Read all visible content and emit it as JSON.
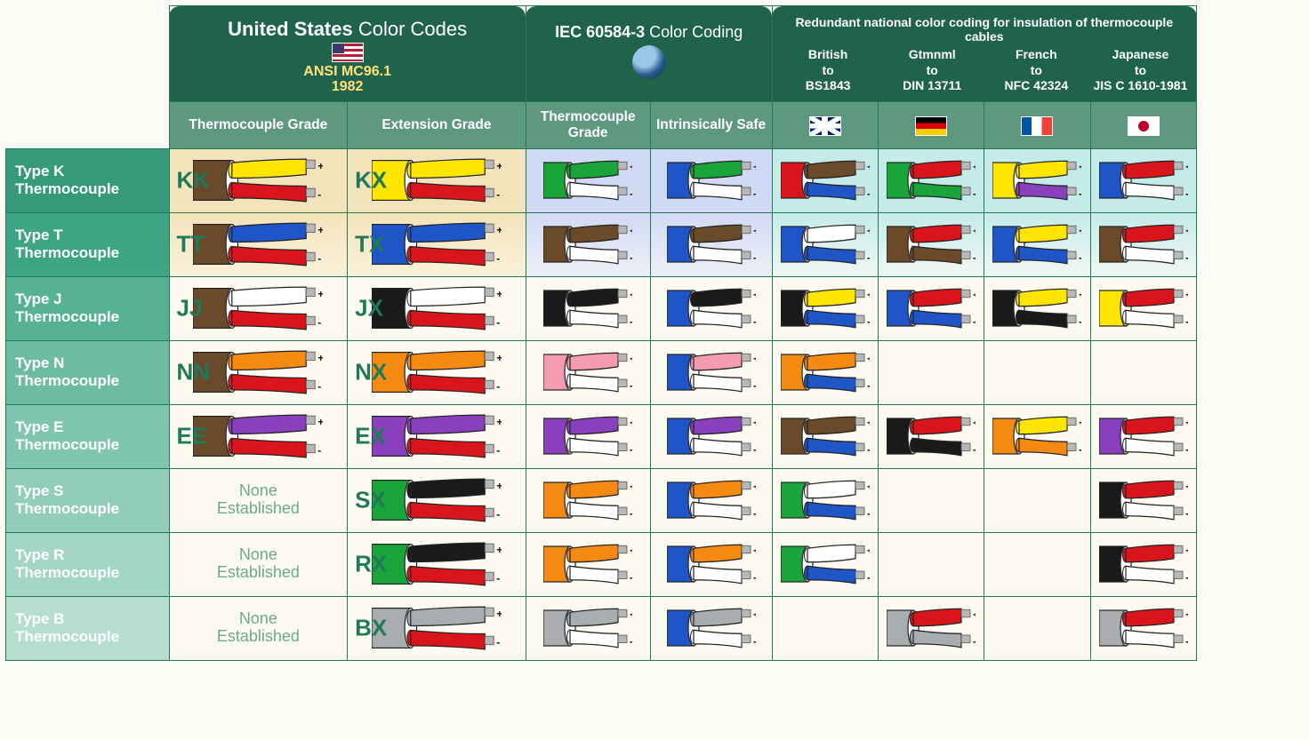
{
  "layout": {
    "row_col_width": 200,
    "us_col_width": 220,
    "iec_col_width": 150,
    "nat_col_width": 126,
    "cable_svg": {
      "w": 118,
      "h": 56
    }
  },
  "colors": {
    "header_bg": "#1f634a",
    "subheader_bg": "#5f9880",
    "border": "#1f7a5a",
    "tag_text": "#1f7a5a",
    "none_text": "#6aa88f",
    "row_shades": [
      "#349a7a",
      "#3ea584",
      "#57b294",
      "#6dbca2",
      "#80c5af",
      "#92cdba",
      "#a4d6c5",
      "#b5decf"
    ],
    "tint_tan": "#f3e3bb",
    "tint_blue": "#d1daf4",
    "tint_cyan": "#c5ebe9"
  },
  "palette": {
    "brown": "#6b4a2a",
    "yellow": "#ffe500",
    "red": "#d9141b",
    "blue": "#1f55c7",
    "white": "#ffffff",
    "green": "#1aa53b",
    "black": "#1a1a1a",
    "orange": "#f58a12",
    "pink": "#f59bb0",
    "purple": "#8a3fbd",
    "grey": "#a9adb0",
    "darkblue": "#1a3fa5"
  },
  "headers": {
    "us": {
      "title_bold": "United States",
      "title_light": "Color Codes",
      "standard": "ANSI MC96.1",
      "year": "1982",
      "sub_tc": "Thermocouple Grade",
      "sub_ext": "Extension Grade"
    },
    "iec": {
      "title_bold": "IEC 60584-3",
      "title_light": "Color Coding",
      "sub_tc": "Thermocouple Grade",
      "sub_safe": "Intrinsically Safe"
    },
    "nat": {
      "title": "Redundant national color coding for insulation of thermocouple cables",
      "cols": [
        {
          "l1": "British",
          "l2": "to",
          "l3": "BS1843",
          "flag": "uk"
        },
        {
          "l1": "Gtmnml",
          "l2": "to",
          "l3": "DIN 13711",
          "flag": "de"
        },
        {
          "l1": "French",
          "l2": "to",
          "l3": "NFC 42324",
          "flag": "fr"
        },
        {
          "l1": "Japanese",
          "l2": "to",
          "l3": "JIS C 1610-1981",
          "flag": "jp"
        }
      ]
    }
  },
  "none_label": "None\nEstablished",
  "rows": [
    {
      "label": "Type K\nThermocouple",
      "us_tc": {
        "tag": "KK",
        "jacket": "brown",
        "pos": "yellow",
        "neg": "red"
      },
      "us_ext": {
        "tag": "KX",
        "jacket": "yellow",
        "pos": "yellow",
        "neg": "red"
      },
      "iec_tc": {
        "jacket": "green",
        "pos": "green",
        "neg": "white"
      },
      "iec_safe": {
        "jacket": "blue",
        "pos": "green",
        "neg": "white"
      },
      "nat": [
        {
          "jacket": "red",
          "pos": "brown",
          "neg": "blue"
        },
        {
          "jacket": "green",
          "pos": "red",
          "neg": "green"
        },
        {
          "jacket": "yellow",
          "pos": "yellow",
          "neg": "purple"
        },
        {
          "jacket": "blue",
          "pos": "red",
          "neg": "white"
        }
      ]
    },
    {
      "label": "Type T\nThermocouple",
      "us_tc": {
        "tag": "TT",
        "jacket": "brown",
        "pos": "blue",
        "neg": "red"
      },
      "us_ext": {
        "tag": "TX",
        "jacket": "blue",
        "pos": "blue",
        "neg": "red"
      },
      "iec_tc": {
        "jacket": "brown",
        "pos": "brown",
        "neg": "white"
      },
      "iec_safe": {
        "jacket": "blue",
        "pos": "brown",
        "neg": "white"
      },
      "nat": [
        {
          "jacket": "blue",
          "pos": "white",
          "neg": "blue"
        },
        {
          "jacket": "brown",
          "pos": "red",
          "neg": "brown"
        },
        {
          "jacket": "blue",
          "pos": "yellow",
          "neg": "blue"
        },
        {
          "jacket": "brown",
          "pos": "red",
          "neg": "white"
        }
      ]
    },
    {
      "label": "Type J\nThermocouple",
      "us_tc": {
        "tag": "JJ",
        "jacket": "brown",
        "pos": "white",
        "neg": "red"
      },
      "us_ext": {
        "tag": "JX",
        "jacket": "black",
        "pos": "white",
        "neg": "red"
      },
      "iec_tc": {
        "jacket": "black",
        "pos": "black",
        "neg": "white"
      },
      "iec_safe": {
        "jacket": "blue",
        "pos": "black",
        "neg": "white"
      },
      "nat": [
        {
          "jacket": "black",
          "pos": "yellow",
          "neg": "blue"
        },
        {
          "jacket": "blue",
          "pos": "red",
          "neg": "blue"
        },
        {
          "jacket": "black",
          "pos": "yellow",
          "neg": "black"
        },
        {
          "jacket": "yellow",
          "pos": "red",
          "neg": "white"
        }
      ]
    },
    {
      "label": "Type N\nThermocouple",
      "us_tc": {
        "tag": "NN",
        "jacket": "brown",
        "pos": "orange",
        "neg": "red"
      },
      "us_ext": {
        "tag": "NX",
        "jacket": "orange",
        "pos": "orange",
        "neg": "red"
      },
      "iec_tc": {
        "jacket": "pink",
        "pos": "pink",
        "neg": "white"
      },
      "iec_safe": {
        "jacket": "blue",
        "pos": "pink",
        "neg": "white"
      },
      "nat": [
        {
          "jacket": "orange",
          "pos": "orange",
          "neg": "blue"
        },
        null,
        null,
        null
      ]
    },
    {
      "label": "Type E\nThermocouple",
      "us_tc": {
        "tag": "EE",
        "jacket": "brown",
        "pos": "purple",
        "neg": "red"
      },
      "us_ext": {
        "tag": "EX",
        "jacket": "purple",
        "pos": "purple",
        "neg": "red"
      },
      "iec_tc": {
        "jacket": "purple",
        "pos": "purple",
        "neg": "white"
      },
      "iec_safe": {
        "jacket": "blue",
        "pos": "purple",
        "neg": "white"
      },
      "nat": [
        {
          "jacket": "brown",
          "pos": "brown",
          "neg": "blue"
        },
        {
          "jacket": "black",
          "pos": "red",
          "neg": "black"
        },
        {
          "jacket": "orange",
          "pos": "yellow",
          "neg": "orange"
        },
        {
          "jacket": "purple",
          "pos": "red",
          "neg": "white"
        }
      ]
    },
    {
      "label": "Type S\nThermocouple",
      "us_tc": null,
      "us_ext": {
        "tag": "SX",
        "jacket": "green",
        "pos": "black",
        "neg": "red"
      },
      "iec_tc": {
        "jacket": "orange",
        "pos": "orange",
        "neg": "white"
      },
      "iec_safe": {
        "jacket": "blue",
        "pos": "orange",
        "neg": "white"
      },
      "nat": [
        {
          "jacket": "green",
          "pos": "white",
          "neg": "blue"
        },
        null,
        null,
        {
          "jacket": "black",
          "pos": "red",
          "neg": "white"
        }
      ]
    },
    {
      "label": "Type R\nThermocouple",
      "us_tc": null,
      "us_ext": {
        "tag": "RX",
        "jacket": "green",
        "pos": "black",
        "neg": "red"
      },
      "iec_tc": {
        "jacket": "orange",
        "pos": "orange",
        "neg": "white"
      },
      "iec_safe": {
        "jacket": "blue",
        "pos": "orange",
        "neg": "white"
      },
      "nat": [
        {
          "jacket": "green",
          "pos": "white",
          "neg": "blue"
        },
        null,
        null,
        {
          "jacket": "black",
          "pos": "red",
          "neg": "white"
        }
      ]
    },
    {
      "label": "Type B\nThermocouple",
      "us_tc": null,
      "us_ext": {
        "tag": "BX",
        "jacket": "grey",
        "pos": "grey",
        "neg": "red"
      },
      "iec_tc": {
        "jacket": "grey",
        "pos": "grey",
        "neg": "white"
      },
      "iec_safe": {
        "jacket": "blue",
        "pos": "grey",
        "neg": "white"
      },
      "nat": [
        null,
        {
          "jacket": "grey",
          "pos": "red",
          "neg": "grey"
        },
        null,
        {
          "jacket": "grey",
          "pos": "red",
          "neg": "white"
        }
      ]
    }
  ]
}
